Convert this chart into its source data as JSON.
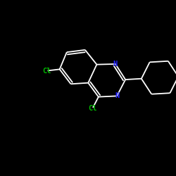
{
  "background_color": "#000000",
  "bond_color": "#ffffff",
  "N_color": "#2222ff",
  "Cl_color": "#00bb00",
  "figsize": [
    2.5,
    2.5
  ],
  "dpi": 100,
  "lw": 1.3,
  "fs": 7.5,
  "xlim": [
    0,
    10
  ],
  "ylim": [
    0,
    10
  ]
}
